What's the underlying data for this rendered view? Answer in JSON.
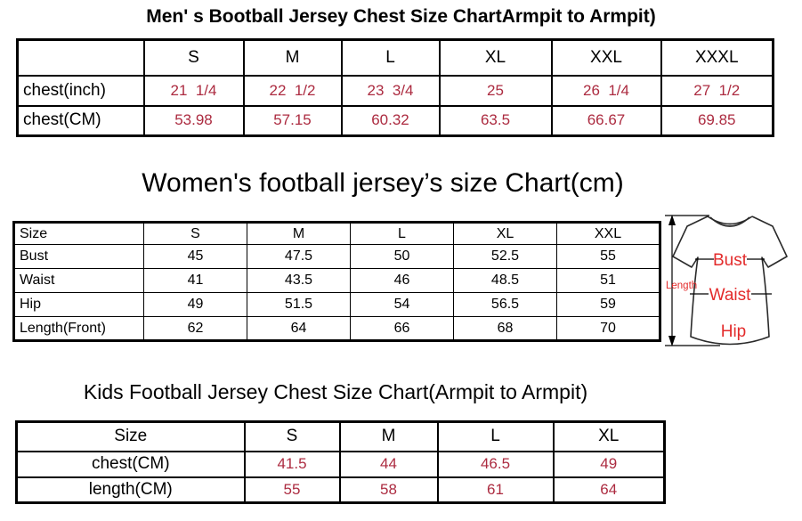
{
  "colors": {
    "table_value_red": "#AC2B40",
    "diagram_label_red": "#E32B2B",
    "text_black": "#000000"
  },
  "men_chart": {
    "title": "Men' s Bootball Jersey Chest Size ChartArmpit to Armpit)",
    "columns": [
      "",
      "S",
      "M",
      "L",
      "XL",
      "XXL",
      "XXXL"
    ],
    "rows": [
      {
        "label": "chest(inch)",
        "values": [
          "21  1/4",
          "22  1/2",
          "23  3/4",
          "25",
          "26  1/4",
          "27  1/2"
        ]
      },
      {
        "label": "chest(CM)",
        "values": [
          "53.98",
          "57.15",
          "60.32",
          "63.5",
          "66.67",
          "69.85"
        ]
      }
    ]
  },
  "women_chart": {
    "title": "Women's football jersey’s size Chart(cm)",
    "columns": [
      "Size",
      "S",
      "M",
      "L",
      "XL",
      "XXL"
    ],
    "rows": [
      {
        "label": "Bust",
        "values": [
          "45",
          "47.5",
          "50",
          "52.5",
          "55"
        ]
      },
      {
        "label": "Waist",
        "values": [
          "41",
          "43.5",
          "46",
          "48.5",
          "51"
        ]
      },
      {
        "label": "Hip",
        "values": [
          "49",
          "51.5",
          "54",
          "56.5",
          "59"
        ]
      },
      {
        "label": "Length(Front)",
        "values": [
          "62",
          "64",
          "66",
          "68",
          "70"
        ]
      }
    ]
  },
  "kids_chart": {
    "title": "Kids Football Jersey Chest Size Chart(Armpit to Armpit)",
    "columns": [
      "Size",
      "S",
      "M",
      "L",
      "XL"
    ],
    "rows": [
      {
        "label": "chest(CM)",
        "values": [
          "41.5",
          "44",
          "46.5",
          "49"
        ]
      },
      {
        "label": "length(CM)",
        "values": [
          "55",
          "58",
          "61",
          "64"
        ]
      }
    ]
  },
  "diagram": {
    "length_label": "Length",
    "bust_label": "Bust",
    "waist_label": "Waist",
    "hip_label": "Hip"
  },
  "chart_data": [
    {
      "type": "table",
      "title": "Men' s Bootball Jersey Chest Size ChartArmpit to Armpit)",
      "categories": [
        "S",
        "M",
        "L",
        "XL",
        "XXL",
        "XXXL"
      ],
      "series": [
        {
          "name": "chest(inch)",
          "values": [
            "21 1/4",
            "22 1/2",
            "23 3/4",
            "25",
            "26 1/4",
            "27 1/2"
          ]
        },
        {
          "name": "chest(CM)",
          "values": [
            53.98,
            57.15,
            60.32,
            63.5,
            66.67,
            69.85
          ]
        }
      ]
    },
    {
      "type": "table",
      "title": "Women's football jersey’s size Chart(cm)",
      "categories": [
        "S",
        "M",
        "L",
        "XL",
        "XXL"
      ],
      "series": [
        {
          "name": "Bust",
          "values": [
            45,
            47.5,
            50,
            52.5,
            55
          ]
        },
        {
          "name": "Waist",
          "values": [
            41,
            43.5,
            46,
            48.5,
            51
          ]
        },
        {
          "name": "Hip",
          "values": [
            49,
            51.5,
            54,
            56.5,
            59
          ]
        },
        {
          "name": "Length(Front)",
          "values": [
            62,
            64,
            66,
            68,
            70
          ]
        }
      ]
    },
    {
      "type": "table",
      "title": "Kids Football Jersey Chest Size Chart(Armpit to Armpit)",
      "categories": [
        "S",
        "M",
        "L",
        "XL"
      ],
      "series": [
        {
          "name": "chest(CM)",
          "values": [
            41.5,
            44,
            46.5,
            49
          ]
        },
        {
          "name": "length(CM)",
          "values": [
            55,
            58,
            61,
            64
          ]
        }
      ]
    }
  ]
}
